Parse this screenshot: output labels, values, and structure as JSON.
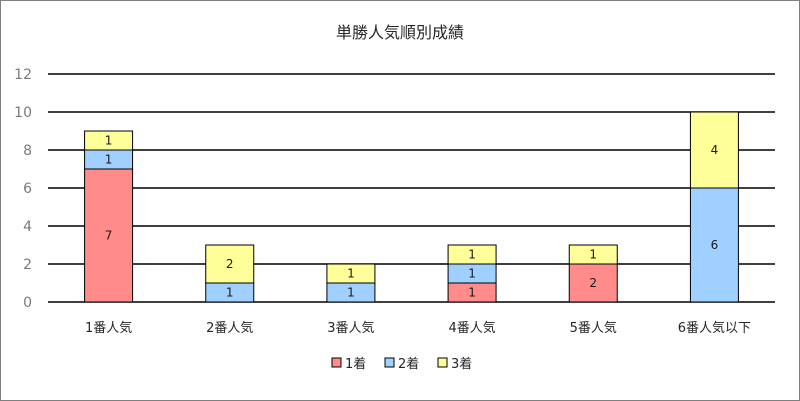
{
  "chart_data": {
    "type": "bar",
    "stacked": true,
    "title": "単勝人気順別成績",
    "categories": [
      "1番人気",
      "2番人気",
      "3番人気",
      "4番人気",
      "5番人気",
      "6番人気以下"
    ],
    "series": [
      {
        "name": "1着",
        "color": "#ff8b8b",
        "values": [
          7,
          0,
          0,
          1,
          2,
          0
        ]
      },
      {
        "name": "2着",
        "color": "#9fd0ff",
        "values": [
          1,
          1,
          1,
          1,
          0,
          6
        ]
      },
      {
        "name": "3着",
        "color": "#ffff99",
        "values": [
          1,
          2,
          1,
          1,
          1,
          4
        ]
      }
    ],
    "ylim": [
      0,
      12
    ],
    "yticks": [
      0,
      2,
      4,
      6,
      8,
      10,
      12
    ],
    "grid": true,
    "legend_position": "bottom",
    "xlabel": "",
    "ylabel": ""
  }
}
